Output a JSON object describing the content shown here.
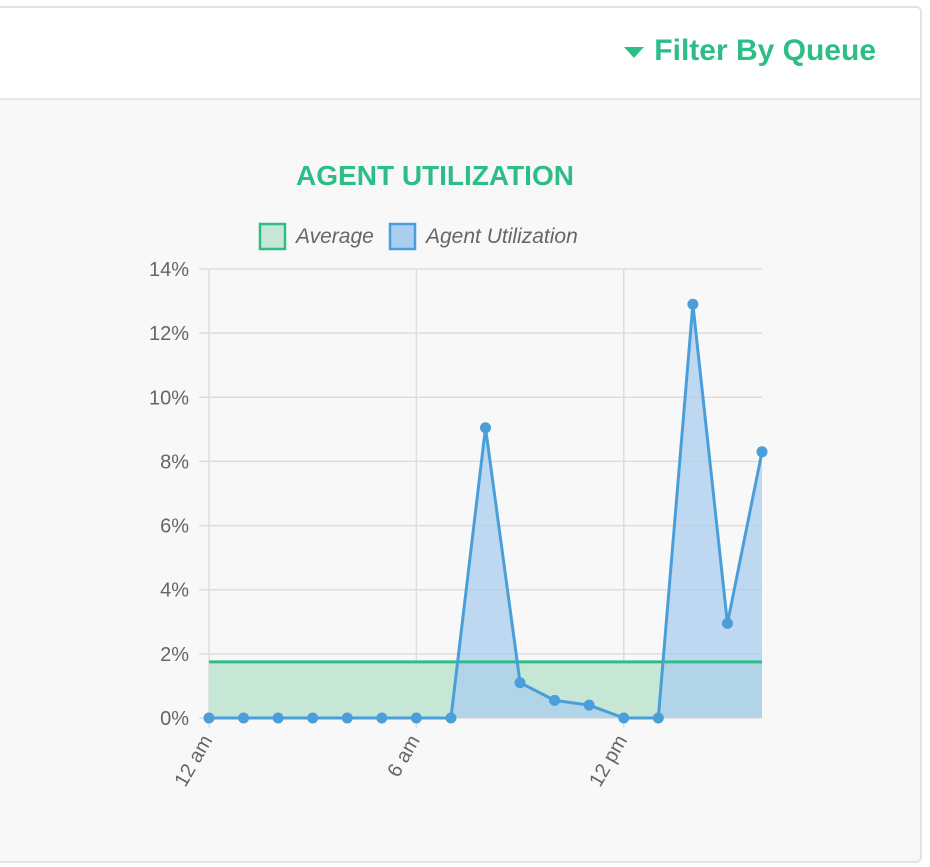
{
  "header": {
    "filter_label": "Filter By Queue"
  },
  "colors": {
    "accent": "#2dbe87",
    "average_fill": "#c6e6d6",
    "average_line": "#2dbe87",
    "util_fill": "#abcdef",
    "util_line": "#4a9ed9",
    "grid": "#dddddd"
  },
  "chart_data": {
    "type": "line",
    "title": "AGENT UTILIZATION",
    "legend": [
      "Average",
      "Agent Utilization"
    ],
    "legend_position": "top",
    "x_tick_labels": [
      "12 am",
      "6 am",
      "12 pm"
    ],
    "y_tick_labels": [
      "0%",
      "2%",
      "4%",
      "6%",
      "8%",
      "10%",
      "12%",
      "14%"
    ],
    "ylim": [
      0,
      14
    ],
    "grid": true,
    "x": [
      0,
      1,
      2,
      3,
      4,
      5,
      6,
      7,
      8,
      9,
      10,
      11,
      12,
      13,
      14,
      15,
      16
    ],
    "series": [
      {
        "name": "Average",
        "type": "area",
        "values": [
          1.75,
          1.75,
          1.75,
          1.75,
          1.75,
          1.75,
          1.75,
          1.75,
          1.75,
          1.75,
          1.75,
          1.75,
          1.75,
          1.75,
          1.75,
          1.75,
          1.75
        ]
      },
      {
        "name": "Agent Utilization",
        "type": "area",
        "values": [
          0,
          0,
          0,
          0,
          0,
          0,
          0,
          0,
          9.05,
          1.1,
          0.55,
          0.4,
          0,
          0,
          12.9,
          2.95,
          8.3
        ]
      }
    ]
  }
}
